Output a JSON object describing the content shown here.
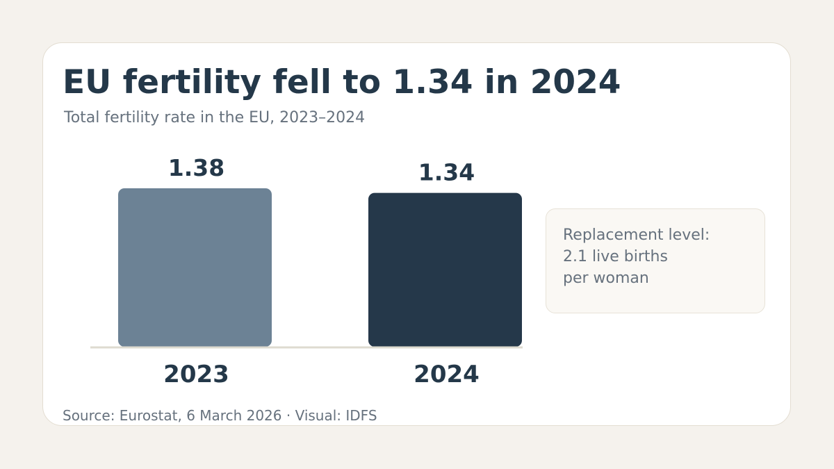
{
  "headline": "EU fertility fell to 1.34 in 2024",
  "subheadline": "Total fertility rate in the EU, 2023–2024",
  "note": {
    "lines": [
      "Replacement level:",
      "2.1 live births",
      "per woman"
    ]
  },
  "source": "Source: Eurostat, 6 March 2026 · Visual: IDFS",
  "colors": {
    "background": "#f5f2ed",
    "card": "#ffffff",
    "text_dark": "#243849",
    "text_muted": "#66717d",
    "baseline": "#dedbd0"
  },
  "chart_data": {
    "type": "bar",
    "categories": [
      "2023",
      "2024"
    ],
    "values": [
      1.38,
      1.34
    ],
    "data_labels": [
      "1.38",
      "1.34"
    ],
    "bar_colors": [
      "#6c8295",
      "#25384a"
    ],
    "ylim": [
      0,
      1.38
    ],
    "grid": false,
    "legend": "none"
  }
}
